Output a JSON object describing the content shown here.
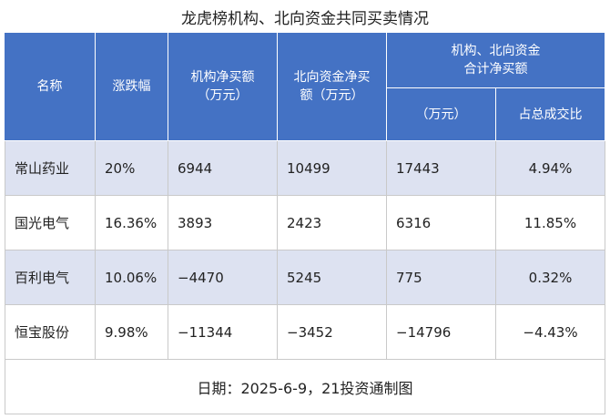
{
  "title": "龙虎榜机构、北向资金共同买卖情况",
  "header": {
    "columns": [
      [
        "名称"
      ],
      [
        "涨跌幅"
      ],
      [
        "机构净买额",
        "（万元）"
      ],
      [
        "北向资金净买",
        "额（万元）"
      ]
    ],
    "group": [
      "机构、北向资金",
      "合计净买额"
    ],
    "subcolumns": [
      [
        "（万元）"
      ],
      [
        "占总成交比"
      ]
    ]
  },
  "rows": [
    [
      "常山药业",
      "20%",
      "6944",
      "10499",
      "17443",
      "4.94%"
    ],
    [
      "国光电气",
      "16.36%",
      "3893",
      "2423",
      "6316",
      "11.85%"
    ],
    [
      "百利电气",
      "10.06%",
      "−4470",
      "5245",
      "775",
      "0.32%"
    ],
    [
      "恒宝股份",
      "9.98%",
      "−11344",
      "−3452",
      "−14796",
      "−4.43%"
    ]
  ],
  "footer": "日期：2025-6-9，21投资通制图"
}
